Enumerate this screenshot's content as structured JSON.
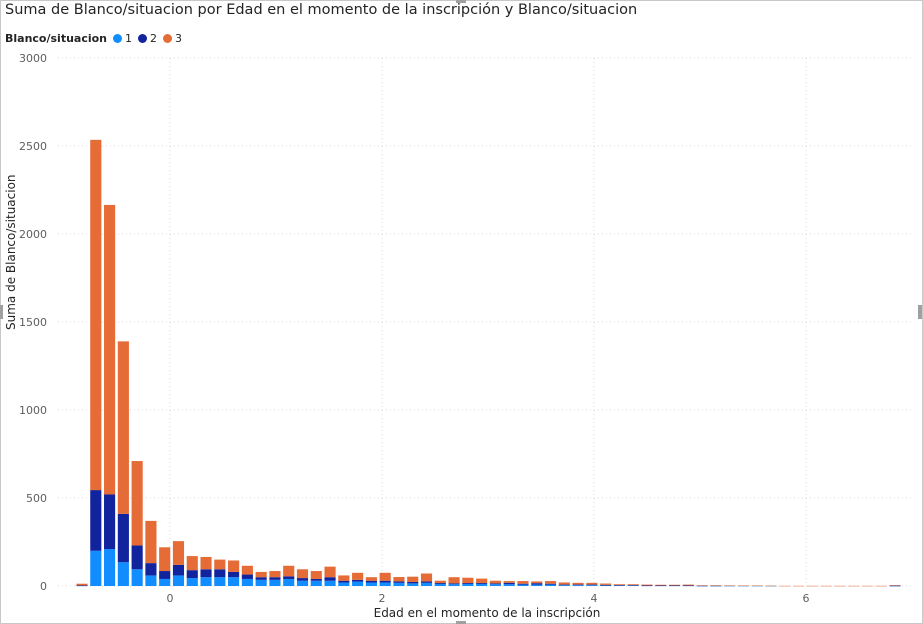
{
  "chart_data": {
    "type": "bar",
    "stacked": true,
    "title": "Suma de Blanco/situacion por Edad en el momento de la inscripción y Blanco/situacion",
    "xlabel": "Edad en el momento de la inscripción",
    "ylabel": "Suma de Blanco/situacion",
    "legend_title": "Blanco/situacion",
    "legend_placement": "top-left",
    "grid": true,
    "xlim": [
      -1.05,
      7.0
    ],
    "ylim": [
      0,
      3000
    ],
    "x_ticks": [
      0,
      2,
      4,
      6
    ],
    "y_ticks": [
      0,
      500,
      1000,
      1500,
      2000,
      2500,
      3000
    ],
    "bar_width": 0.105,
    "x": [
      -0.83,
      -0.7,
      -0.57,
      -0.44,
      -0.31,
      -0.18,
      -0.05,
      0.08,
      0.21,
      0.34,
      0.47,
      0.6,
      0.73,
      0.86,
      0.99,
      1.12,
      1.25,
      1.38,
      1.51,
      1.64,
      1.77,
      1.9,
      2.03,
      2.16,
      2.29,
      2.42,
      2.55,
      2.68,
      2.81,
      2.94,
      3.07,
      3.2,
      3.33,
      3.46,
      3.59,
      3.72,
      3.85,
      3.98,
      4.11,
      4.24,
      4.37,
      4.5,
      4.63,
      4.76,
      4.89,
      5.02,
      5.15,
      5.28,
      5.41,
      5.54,
      5.67,
      5.8,
      5.93,
      6.06,
      6.19,
      6.32,
      6.45,
      6.58,
      6.71,
      6.84
    ],
    "series": [
      {
        "name": "1",
        "color": "#118DFF",
        "values": [
          2,
          200,
          210,
          135,
          95,
          60,
          40,
          60,
          45,
          50,
          50,
          50,
          40,
          35,
          35,
          40,
          30,
          30,
          30,
          20,
          25,
          20,
          20,
          18,
          15,
          18,
          12,
          10,
          12,
          12,
          10,
          10,
          8,
          8,
          8,
          5,
          5,
          5,
          4,
          3,
          3,
          2,
          2,
          2,
          2,
          1,
          1,
          1,
          1,
          1,
          1,
          0,
          0,
          0,
          0,
          0,
          0,
          0,
          0,
          1
        ]
      },
      {
        "name": "2",
        "color": "#12239E",
        "values": [
          1,
          345,
          310,
          275,
          135,
          70,
          45,
          60,
          45,
          45,
          45,
          30,
          25,
          15,
          15,
          15,
          15,
          10,
          20,
          10,
          10,
          10,
          10,
          8,
          8,
          8,
          5,
          5,
          5,
          5,
          5,
          8,
          5,
          8,
          5,
          3,
          3,
          3,
          2,
          2,
          2,
          1,
          1,
          1,
          1,
          1,
          1,
          0,
          0,
          0,
          0,
          0,
          0,
          0,
          0,
          0,
          0,
          0,
          0,
          1
        ]
      },
      {
        "name": "3",
        "color": "#E66C37",
        "values": [
          10,
          1990,
          1645,
          980,
          480,
          240,
          135,
          135,
          80,
          70,
          55,
          65,
          50,
          30,
          35,
          60,
          50,
          45,
          60,
          30,
          40,
          20,
          45,
          25,
          30,
          45,
          13,
          35,
          30,
          25,
          15,
          10,
          15,
          10,
          15,
          12,
          10,
          10,
          8,
          5,
          5,
          5,
          4,
          4,
          5,
          2,
          2,
          3,
          2,
          2,
          1,
          1,
          1,
          1,
          1,
          1,
          1,
          1,
          1,
          3
        ]
      }
    ]
  }
}
